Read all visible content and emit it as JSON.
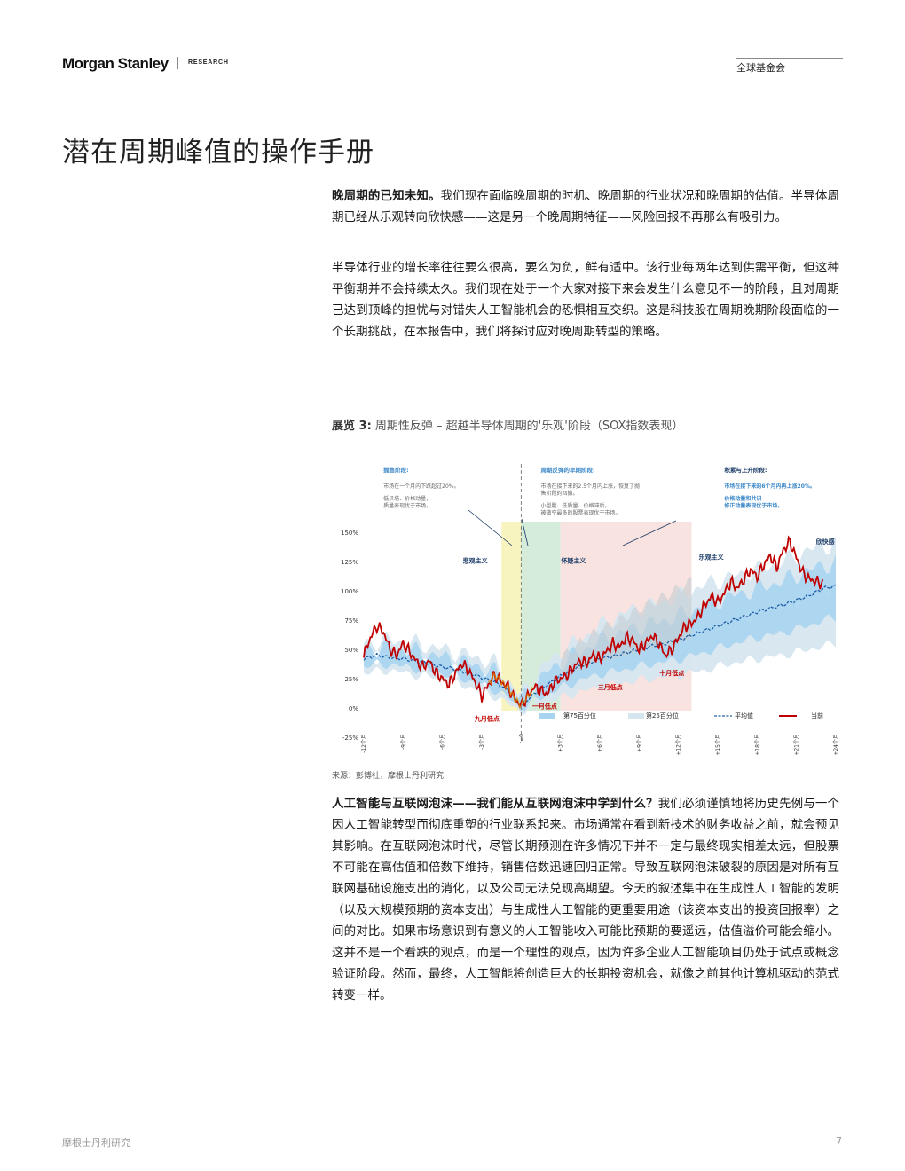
{
  "header": {
    "logo": "Morgan Stanley",
    "research": "RESEARCH",
    "section": "全球基金会"
  },
  "title": "潜在周期峰值的操作手册",
  "paragraphs": {
    "p1_lead": "晚周期的已知未知。",
    "p1_body": "我们现在面临晚周期的时机、晚周期的行业状况和晚周期的估值。半导体周期已经从乐观转向欣快感——这是另一个晚周期特征——风险回报不再那么有吸引力。",
    "p2": "半导体行业的增长率往往要么很高，要么为负，鲜有适中。该行业每两年达到供需平衡，但这种平衡期并不会持续太久。我们现在处于一个大家对接下来会发生什么意见不一的阶段，且对周期已达到顶峰的担忧与对错失人工智能机会的恐惧相互交织。这是科技股在周期晚期阶段面临的一个长期挑战，在本报告中，我们将探讨应对晚周期转型的策略。",
    "p3_lead": "人工智能与互联网泡沫——我们能从互联网泡沫中学到什么？",
    "p3_body": "我们必须谨慎地将历史先例与一个因人工智能转型而彻底重塑的行业联系起来。市场通常在看到新技术的财务收益之前，就会预见其影响。在互联网泡沫时代，尽管长期预测在许多情况下并不一定与最终现实相差太远，但股票不可能在高估值和倍数下维持，销售倍数迅速回归正常。导致互联网泡沫破裂的原因是对所有互联网基础设施支出的消化，以及公司无法兑现高期望。今天的叙述集中在生成性人工智能的发明（以及大规模预期的资本支出）与生成性人工智能的更重要用途（该资本支出的投资回报率）之间的对比。如果市场意识到有意义的人工智能收入可能比预期的要遥远，估值溢价可能会缩小。这并不是一个看跌的观点，而是一个理性的观点，因为许多企业人工智能项目仍处于试点或概念验证阶段。然而，最终，人工智能将创造巨大的长期投资机会，就像之前其他计算机驱动的范式转变一样。"
  },
  "exhibit": {
    "label": "展览 3:",
    "caption": "周期性反弹 – 超越半导体周期的'乐观'阶段（SOX指数表现）"
  },
  "source": "来源：彭博社，摩根士丹利研究",
  "footer": {
    "left": "摩根士丹利研究",
    "page": "7"
  },
  "colors": {
    "current": "#c00000",
    "average": "#1f5fa8",
    "band75": "#a9d4ef",
    "band25": "#d6e6ef",
    "pessimism_zone": "#f7f2b5",
    "skepticism_zone": "#cfe9d3",
    "optimism_zone": "#f7dedb",
    "annotation_blue": "#3a87c8",
    "annotation_dark": "#1a3a66"
  },
  "chart_data": {
    "type": "line",
    "title": "",
    "xlabel": "",
    "ylabel": "",
    "ylim": [
      -25,
      150
    ],
    "xlim": [
      -12,
      24
    ],
    "y_ticks": [
      "-25%",
      "0%",
      "25%",
      "50%",
      "75%",
      "100%",
      "125%",
      "150%"
    ],
    "x_ticks": [
      "-12个月",
      "-9个月",
      "-6个月",
      "-3个月",
      "t=0",
      "+3个月",
      "+6个月",
      "+9个月",
      "+12个月",
      "+15个月",
      "+18个月",
      "+21个月",
      "+24个月"
    ],
    "legend": [
      "第75百分位",
      "第25百分位",
      "平均值",
      "当前"
    ],
    "legend_position": "bottom",
    "phases": [
      {
        "name": "悲观主义",
        "x_start": -1.5,
        "x_end": 0
      },
      {
        "name": "怀疑主义",
        "x_start": 0,
        "x_end": 3
      },
      {
        "name": "乐观主义",
        "x_start": 3,
        "x_end": 13
      },
      {
        "name": "欣快感",
        "x_start": 22,
        "x_end": 24
      }
    ],
    "point_labels": [
      "九月低点",
      "一月低点",
      "三月低点",
      "十月低点"
    ],
    "annotations": [
      {
        "title": "抛售阶段:",
        "lines": [
          "市场在一个月内下跌超过20%。",
          "低贝塔、价格动量，",
          "质量表现优于市场。"
        ]
      },
      {
        "title": "周期反弹的早期阶段:",
        "lines": [
          "市场在接下来的2.5个月内上涨，恢复了抛",
          "售阶段的回撤。",
          "小型股、低质量、价格滞后，",
          "被做空最多的股票表现优于市场。"
        ]
      },
      {
        "title": "积累与上升阶段:",
        "lines": [
          "市场在接下来的6个月内再上涨20%。",
          "价格动量和共识",
          "修正动量表现优于市场。"
        ]
      }
    ],
    "series": [
      {
        "name": "当前",
        "x": [
          -12,
          -11.5,
          -11,
          -10.5,
          -10,
          -9.5,
          -9,
          -8.5,
          -8,
          -7.5,
          -7,
          -6.5,
          -6,
          -5.5,
          -5,
          -4.5,
          -4,
          -3.5,
          -3,
          -2.5,
          -2,
          -1.5,
          -1,
          -0.5,
          0,
          0.5,
          1,
          1.5,
          2,
          2.5,
          3,
          3.5,
          4,
          4.5,
          5,
          5.5,
          6,
          6.5,
          7,
          7.5,
          8,
          8.5,
          9,
          9.5,
          10,
          10.5,
          11,
          11.5,
          12,
          12.5,
          13,
          13.5,
          14,
          14.5,
          15,
          15.5,
          16,
          16.5,
          17,
          17.5,
          18,
          18.5,
          19,
          19.5,
          20,
          20.5,
          21,
          21.5,
          22,
          22.5,
          23
        ],
        "values": [
          45,
          60,
          70,
          65,
          50,
          45,
          55,
          48,
          40,
          35,
          40,
          30,
          25,
          20,
          30,
          38,
          32,
          22,
          10,
          20,
          28,
          22,
          18,
          8,
          2,
          10,
          18,
          15,
          12,
          22,
          25,
          28,
          35,
          40,
          38,
          45,
          42,
          48,
          55,
          52,
          60,
          58,
          50,
          55,
          62,
          55,
          45,
          50,
          60,
          70,
          72,
          78,
          88,
          95,
          90,
          98,
          108,
          102,
          110,
          118,
          112,
          122,
          130,
          120,
          135,
          142,
          128,
          115,
          110,
          108,
          106
        ]
      },
      {
        "name": "平均值",
        "x": [
          -12,
          -11,
          -10,
          -9,
          -8,
          -7,
          -6,
          -5,
          -4,
          -3,
          -2,
          -1,
          0,
          1,
          2,
          3,
          4,
          5,
          6,
          7,
          8,
          9,
          10,
          11,
          12,
          13,
          14,
          15,
          16,
          17,
          18,
          19,
          20,
          21,
          22,
          23,
          24
        ],
        "values": [
          42,
          45,
          43,
          42,
          40,
          38,
          35,
          33,
          30,
          26,
          22,
          15,
          2,
          12,
          20,
          27,
          33,
          38,
          42,
          44,
          47,
          50,
          53,
          55,
          58,
          62,
          66,
          70,
          74,
          78,
          82,
          85,
          88,
          92,
          96,
          102,
          104
        ]
      },
      {
        "name": "第75百分位",
        "x": [
          -12,
          -10,
          -8,
          -6,
          -4,
          -2,
          0,
          2,
          4,
          6,
          8,
          10,
          12,
          14,
          16,
          18,
          20,
          22,
          24
        ],
        "values": [
          55,
          58,
          55,
          50,
          45,
          38,
          10,
          40,
          55,
          70,
          82,
          88,
          95,
          105,
          112,
          118,
          125,
          135,
          140
        ]
      },
      {
        "name": "第25百分位",
        "x": [
          -12,
          -10,
          -8,
          -6,
          -4,
          -2,
          0,
          2,
          4,
          6,
          8,
          10,
          12,
          14,
          16,
          18,
          20,
          22,
          24
        ],
        "values": [
          30,
          32,
          28,
          25,
          18,
          10,
          -3,
          5,
          12,
          18,
          22,
          25,
          28,
          32,
          38,
          42,
          45,
          50,
          55
        ]
      }
    ]
  }
}
